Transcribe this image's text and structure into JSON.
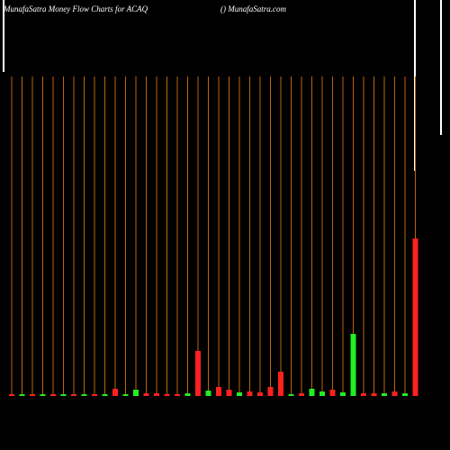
{
  "chart_data": {
    "type": "bar",
    "title": "MunafaSatra  Money Flow  Charts for ACAQ",
    "subtitle": "() MunafaSatra.com",
    "categories": [
      null,
      null,
      null,
      null,
      null,
      null,
      null,
      null,
      null,
      null,
      null,
      null,
      null,
      null,
      null,
      null,
      null,
      null,
      null,
      null,
      null,
      null,
      null,
      null,
      null,
      null,
      null,
      null,
      null,
      null,
      null,
      null,
      null,
      null,
      null,
      null,
      null,
      null,
      null,
      null
    ],
    "values": [
      2,
      2,
      2,
      2,
      2,
      2,
      2,
      2,
      2,
      2,
      8,
      2,
      7,
      3,
      3,
      2,
      2,
      3,
      50,
      6,
      10,
      7,
      4,
      5,
      4,
      10,
      27,
      2,
      3,
      8,
      5,
      7,
      4,
      69,
      3,
      3,
      3,
      5,
      3,
      175
    ],
    "bar_colors": [
      "#ff2020",
      "#22ee22",
      "#ff2020",
      "#22ee22",
      "#ff2020",
      "#22ee22",
      "#ff2020",
      "#22ee22",
      "#ff2020",
      "#22ee22",
      "#ff2020",
      "#22ee22",
      "#22ee22",
      "#ff2020",
      "#ff2020",
      "#ff2020",
      "#ff2020",
      "#22ee22",
      "#ff2020",
      "#22ee22",
      "#ff2020",
      "#ff2020",
      "#22ee22",
      "#ff2020",
      "#ff2020",
      "#ff2020",
      "#ff2020",
      "#22ee22",
      "#ff2020",
      "#22ee22",
      "#22ee22",
      "#ff2020",
      "#22ee22",
      "#22ee22",
      "#ff2020",
      "#ff2020",
      "#22ee22",
      "#ff2020",
      "#22ee22",
      "#ff2020"
    ],
    "ylim": [
      0,
      355
    ],
    "grid": true,
    "grid_color": "#b8660b"
  }
}
